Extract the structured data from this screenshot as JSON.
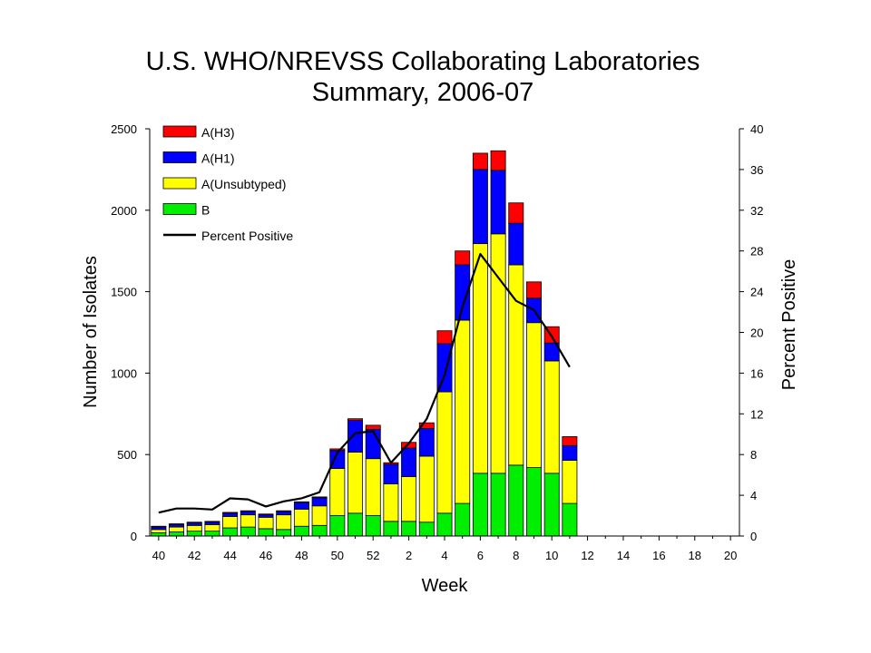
{
  "chart_data": {
    "type": "bar",
    "title_line1": "U.S. WHO/NREVSS Collaborating Laboratories",
    "title_line2": "Summary, 2006-07",
    "xlabel": "Week",
    "ylabel": "Number of Isolates",
    "y2label": "Percent Positive",
    "ylim": [
      0,
      2500
    ],
    "y2lim": [
      0,
      40
    ],
    "yticks": [
      "0",
      "500",
      "1000",
      "1500",
      "2000",
      "2500"
    ],
    "y2ticks": [
      "0",
      "4",
      "8",
      "12",
      "16",
      "20",
      "24",
      "28",
      "32",
      "36",
      "40"
    ],
    "xticks": [
      "40",
      "42",
      "44",
      "46",
      "48",
      "50",
      "52",
      "2",
      "4",
      "6",
      "8",
      "10",
      "12",
      "14",
      "16",
      "18",
      "20"
    ],
    "weeks": [
      "40",
      "41",
      "42",
      "43",
      "44",
      "45",
      "46",
      "47",
      "48",
      "49",
      "50",
      "51",
      "52",
      "1",
      "2",
      "3",
      "4",
      "5",
      "6",
      "7",
      "8",
      "9",
      "10",
      "11",
      "12",
      "13",
      "14",
      "15",
      "16",
      "17",
      "18",
      "19",
      "20"
    ],
    "stacked": true,
    "series": [
      {
        "name": "B",
        "color": "#00ee00",
        "values": [
          20,
          25,
          30,
          30,
          50,
          55,
          45,
          40,
          60,
          65,
          125,
          140,
          125,
          90,
          90,
          85,
          140,
          200,
          385,
          385,
          435,
          420,
          385,
          200
        ]
      },
      {
        "name": "A(Unsubtyped)",
        "color": "#ffff00",
        "values": [
          20,
          30,
          35,
          40,
          70,
          75,
          70,
          90,
          105,
          120,
          290,
          375,
          350,
          230,
          275,
          405,
          745,
          1125,
          1410,
          1470,
          1230,
          890,
          690,
          265
        ]
      },
      {
        "name": "A(H1)",
        "color": "#0000ff",
        "values": [
          15,
          15,
          15,
          15,
          20,
          20,
          15,
          20,
          40,
          50,
          110,
          195,
          180,
          120,
          175,
          170,
          295,
          340,
          455,
          390,
          255,
          150,
          110,
          90
        ]
      },
      {
        "name": "A(H3)",
        "color": "#ff0000",
        "values": [
          5,
          5,
          5,
          5,
          5,
          5,
          5,
          5,
          5,
          5,
          10,
          10,
          25,
          10,
          35,
          35,
          80,
          85,
          100,
          120,
          125,
          100,
          100,
          55
        ]
      }
    ],
    "line": {
      "name": "Percent Positive",
      "color": "#000000",
      "values": [
        2.3,
        2.7,
        2.7,
        2.6,
        3.7,
        3.6,
        2.9,
        3.4,
        3.7,
        4.3,
        8.2,
        10.1,
        10.3,
        7.2,
        9.1,
        11.5,
        15.8,
        22.5,
        27.7,
        25.4,
        23.1,
        22.2,
        19.6,
        16.6
      ]
    },
    "legend": {
      "placement": "top-left",
      "entries": [
        {
          "label": "A(H3)",
          "color": "#ff0000",
          "kind": "box"
        },
        {
          "label": "A(H1)",
          "color": "#0000ff",
          "kind": "box"
        },
        {
          "label": "A(Unsubtyped)",
          "color": "#ffff00",
          "kind": "box"
        },
        {
          "label": "B",
          "color": "#00ee00",
          "kind": "box"
        },
        {
          "label": "Percent Positive",
          "color": "#000000",
          "kind": "line"
        }
      ]
    },
    "grid": false
  }
}
